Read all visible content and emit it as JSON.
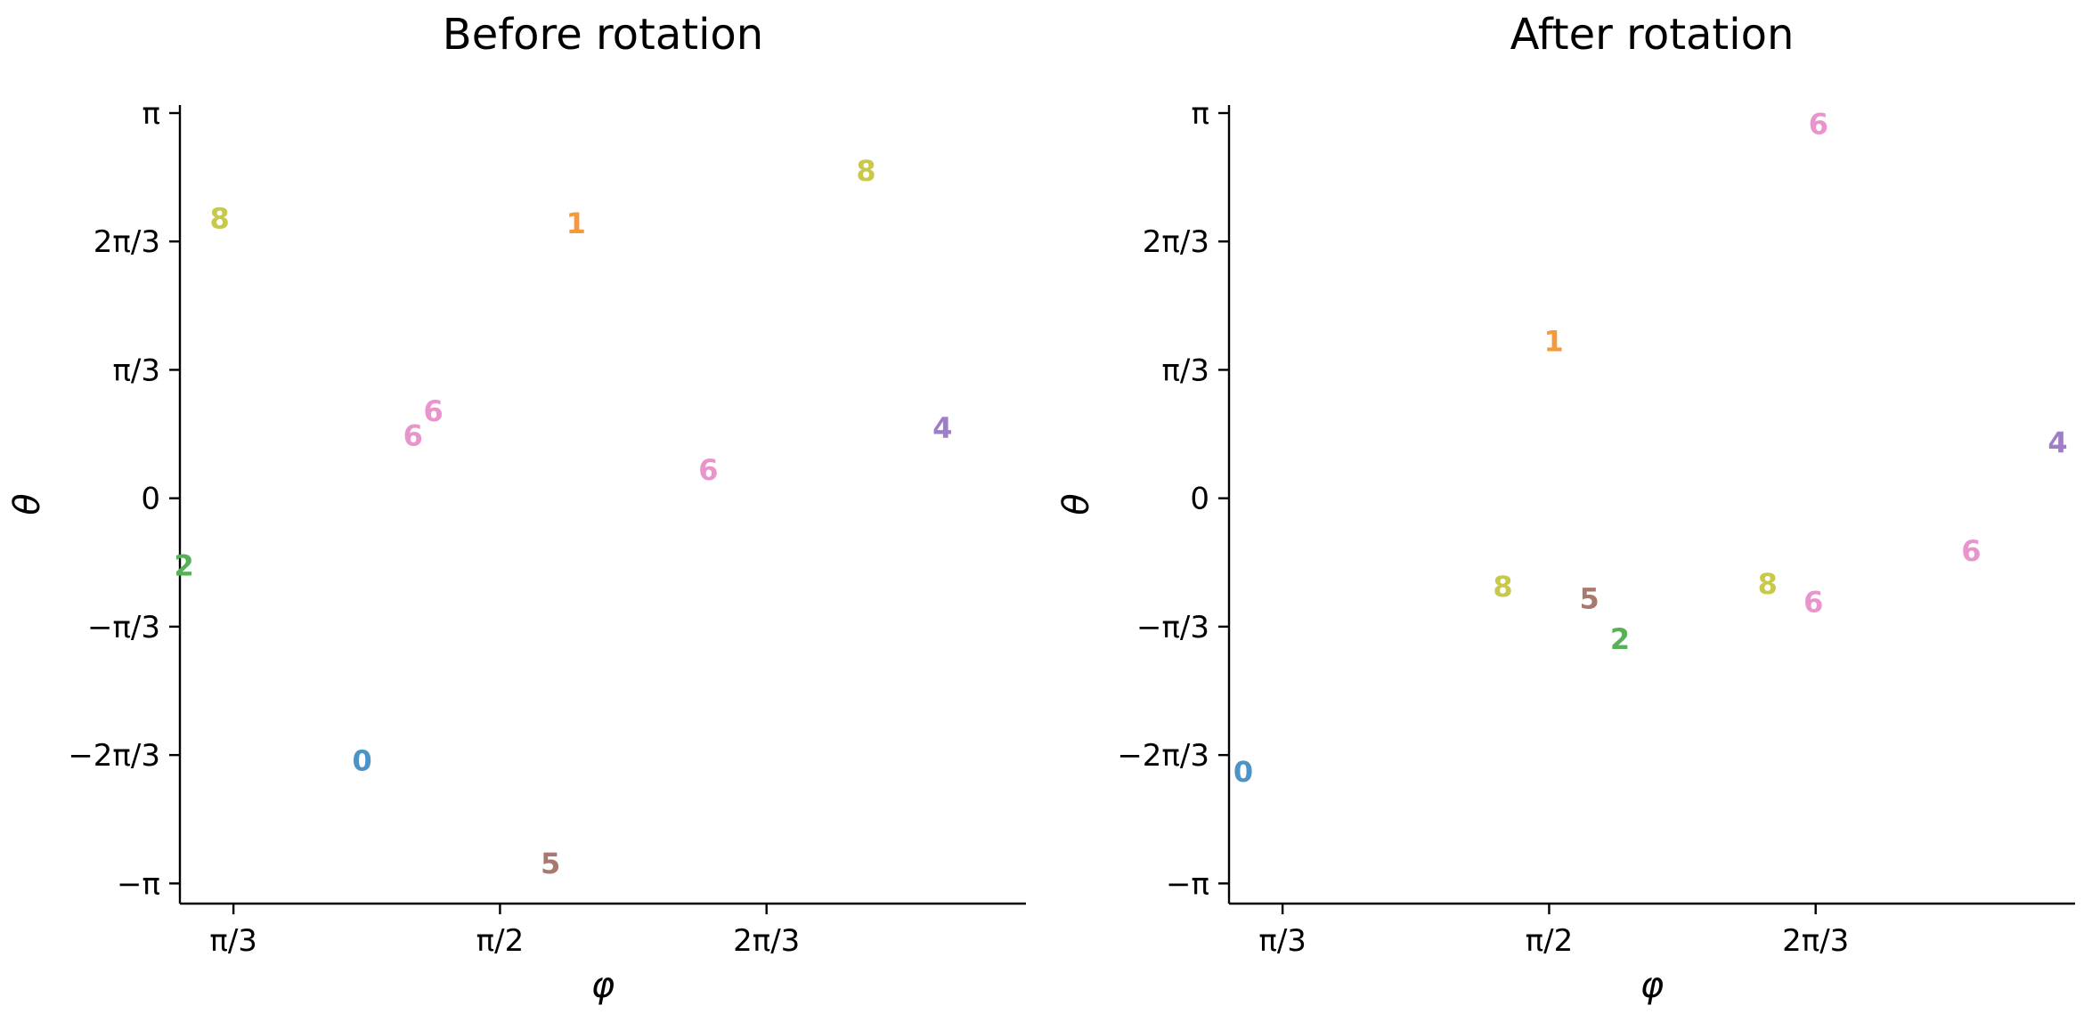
{
  "palette": {
    "0": "#4c93c6",
    "1": "#f7993a",
    "2": "#56b256",
    "4": "#9e7ec6",
    "5": "#a87a6f",
    "6": "#e994cd",
    "8": "#c8c84b"
  },
  "chart_data": [
    {
      "type": "scatter",
      "title": "Before rotation",
      "xlabel": "φ",
      "ylabel": "θ",
      "xlim": [
        0.942,
        2.604
      ],
      "ylim": [
        -3.306,
        3.207
      ],
      "x_ticks": [
        {
          "value": 1.0472,
          "label": "π/3"
        },
        {
          "value": 1.5708,
          "label": "π/2"
        },
        {
          "value": 2.0944,
          "label": "2π/3"
        }
      ],
      "y_ticks": [
        {
          "value": 3.1416,
          "label": "π"
        },
        {
          "value": 2.0944,
          "label": "2π/3"
        },
        {
          "value": 1.0472,
          "label": "π/3"
        },
        {
          "value": 0,
          "label": "0"
        },
        {
          "value": -1.0472,
          "label": "−π/3"
        },
        {
          "value": -2.0944,
          "label": "−2π/3"
        },
        {
          "value": -3.1416,
          "label": "−π"
        }
      ],
      "points": [
        {
          "label": "8",
          "x": 1.02,
          "y": 2.28
        },
        {
          "label": "1",
          "x": 1.72,
          "y": 2.24
        },
        {
          "label": "8",
          "x": 2.29,
          "y": 2.67
        },
        {
          "label": "6",
          "x": 1.44,
          "y": 0.71
        },
        {
          "label": "6",
          "x": 1.4,
          "y": 0.51
        },
        {
          "label": "6",
          "x": 1.98,
          "y": 0.23
        },
        {
          "label": "4",
          "x": 2.44,
          "y": 0.57
        },
        {
          "label": "2",
          "x": 0.95,
          "y": -0.55
        },
        {
          "label": "0",
          "x": 1.3,
          "y": -2.14
        },
        {
          "label": "5",
          "x": 1.67,
          "y": -2.98
        }
      ]
    },
    {
      "type": "scatter",
      "title": "After rotation",
      "xlabel": "φ",
      "ylabel": "θ",
      "xlim": [
        0.942,
        2.604
      ],
      "ylim": [
        -3.306,
        3.207
      ],
      "x_ticks": [
        {
          "value": 1.0472,
          "label": "π/3"
        },
        {
          "value": 1.5708,
          "label": "π/2"
        },
        {
          "value": 2.0944,
          "label": "2π/3"
        }
      ],
      "y_ticks": [
        {
          "value": 3.1416,
          "label": "π"
        },
        {
          "value": 2.0944,
          "label": "2π/3"
        },
        {
          "value": 1.0472,
          "label": "π/3"
        },
        {
          "value": 0,
          "label": "0"
        },
        {
          "value": -1.0472,
          "label": "−π/3"
        },
        {
          "value": -2.0944,
          "label": "−2π/3"
        },
        {
          "value": -3.1416,
          "label": "−π"
        }
      ],
      "points": [
        {
          "label": "6",
          "x": 2.1,
          "y": 3.05
        },
        {
          "label": "1",
          "x": 1.58,
          "y": 1.28
        },
        {
          "label": "4",
          "x": 2.57,
          "y": 0.45
        },
        {
          "label": "6",
          "x": 2.4,
          "y": -0.43
        },
        {
          "label": "8",
          "x": 1.48,
          "y": -0.72
        },
        {
          "label": "5",
          "x": 1.65,
          "y": -0.82
        },
        {
          "label": "8",
          "x": 2.0,
          "y": -0.7
        },
        {
          "label": "6",
          "x": 2.09,
          "y": -0.85
        },
        {
          "label": "2",
          "x": 1.71,
          "y": -1.15
        },
        {
          "label": "0",
          "x": 0.97,
          "y": -2.23
        }
      ]
    }
  ]
}
